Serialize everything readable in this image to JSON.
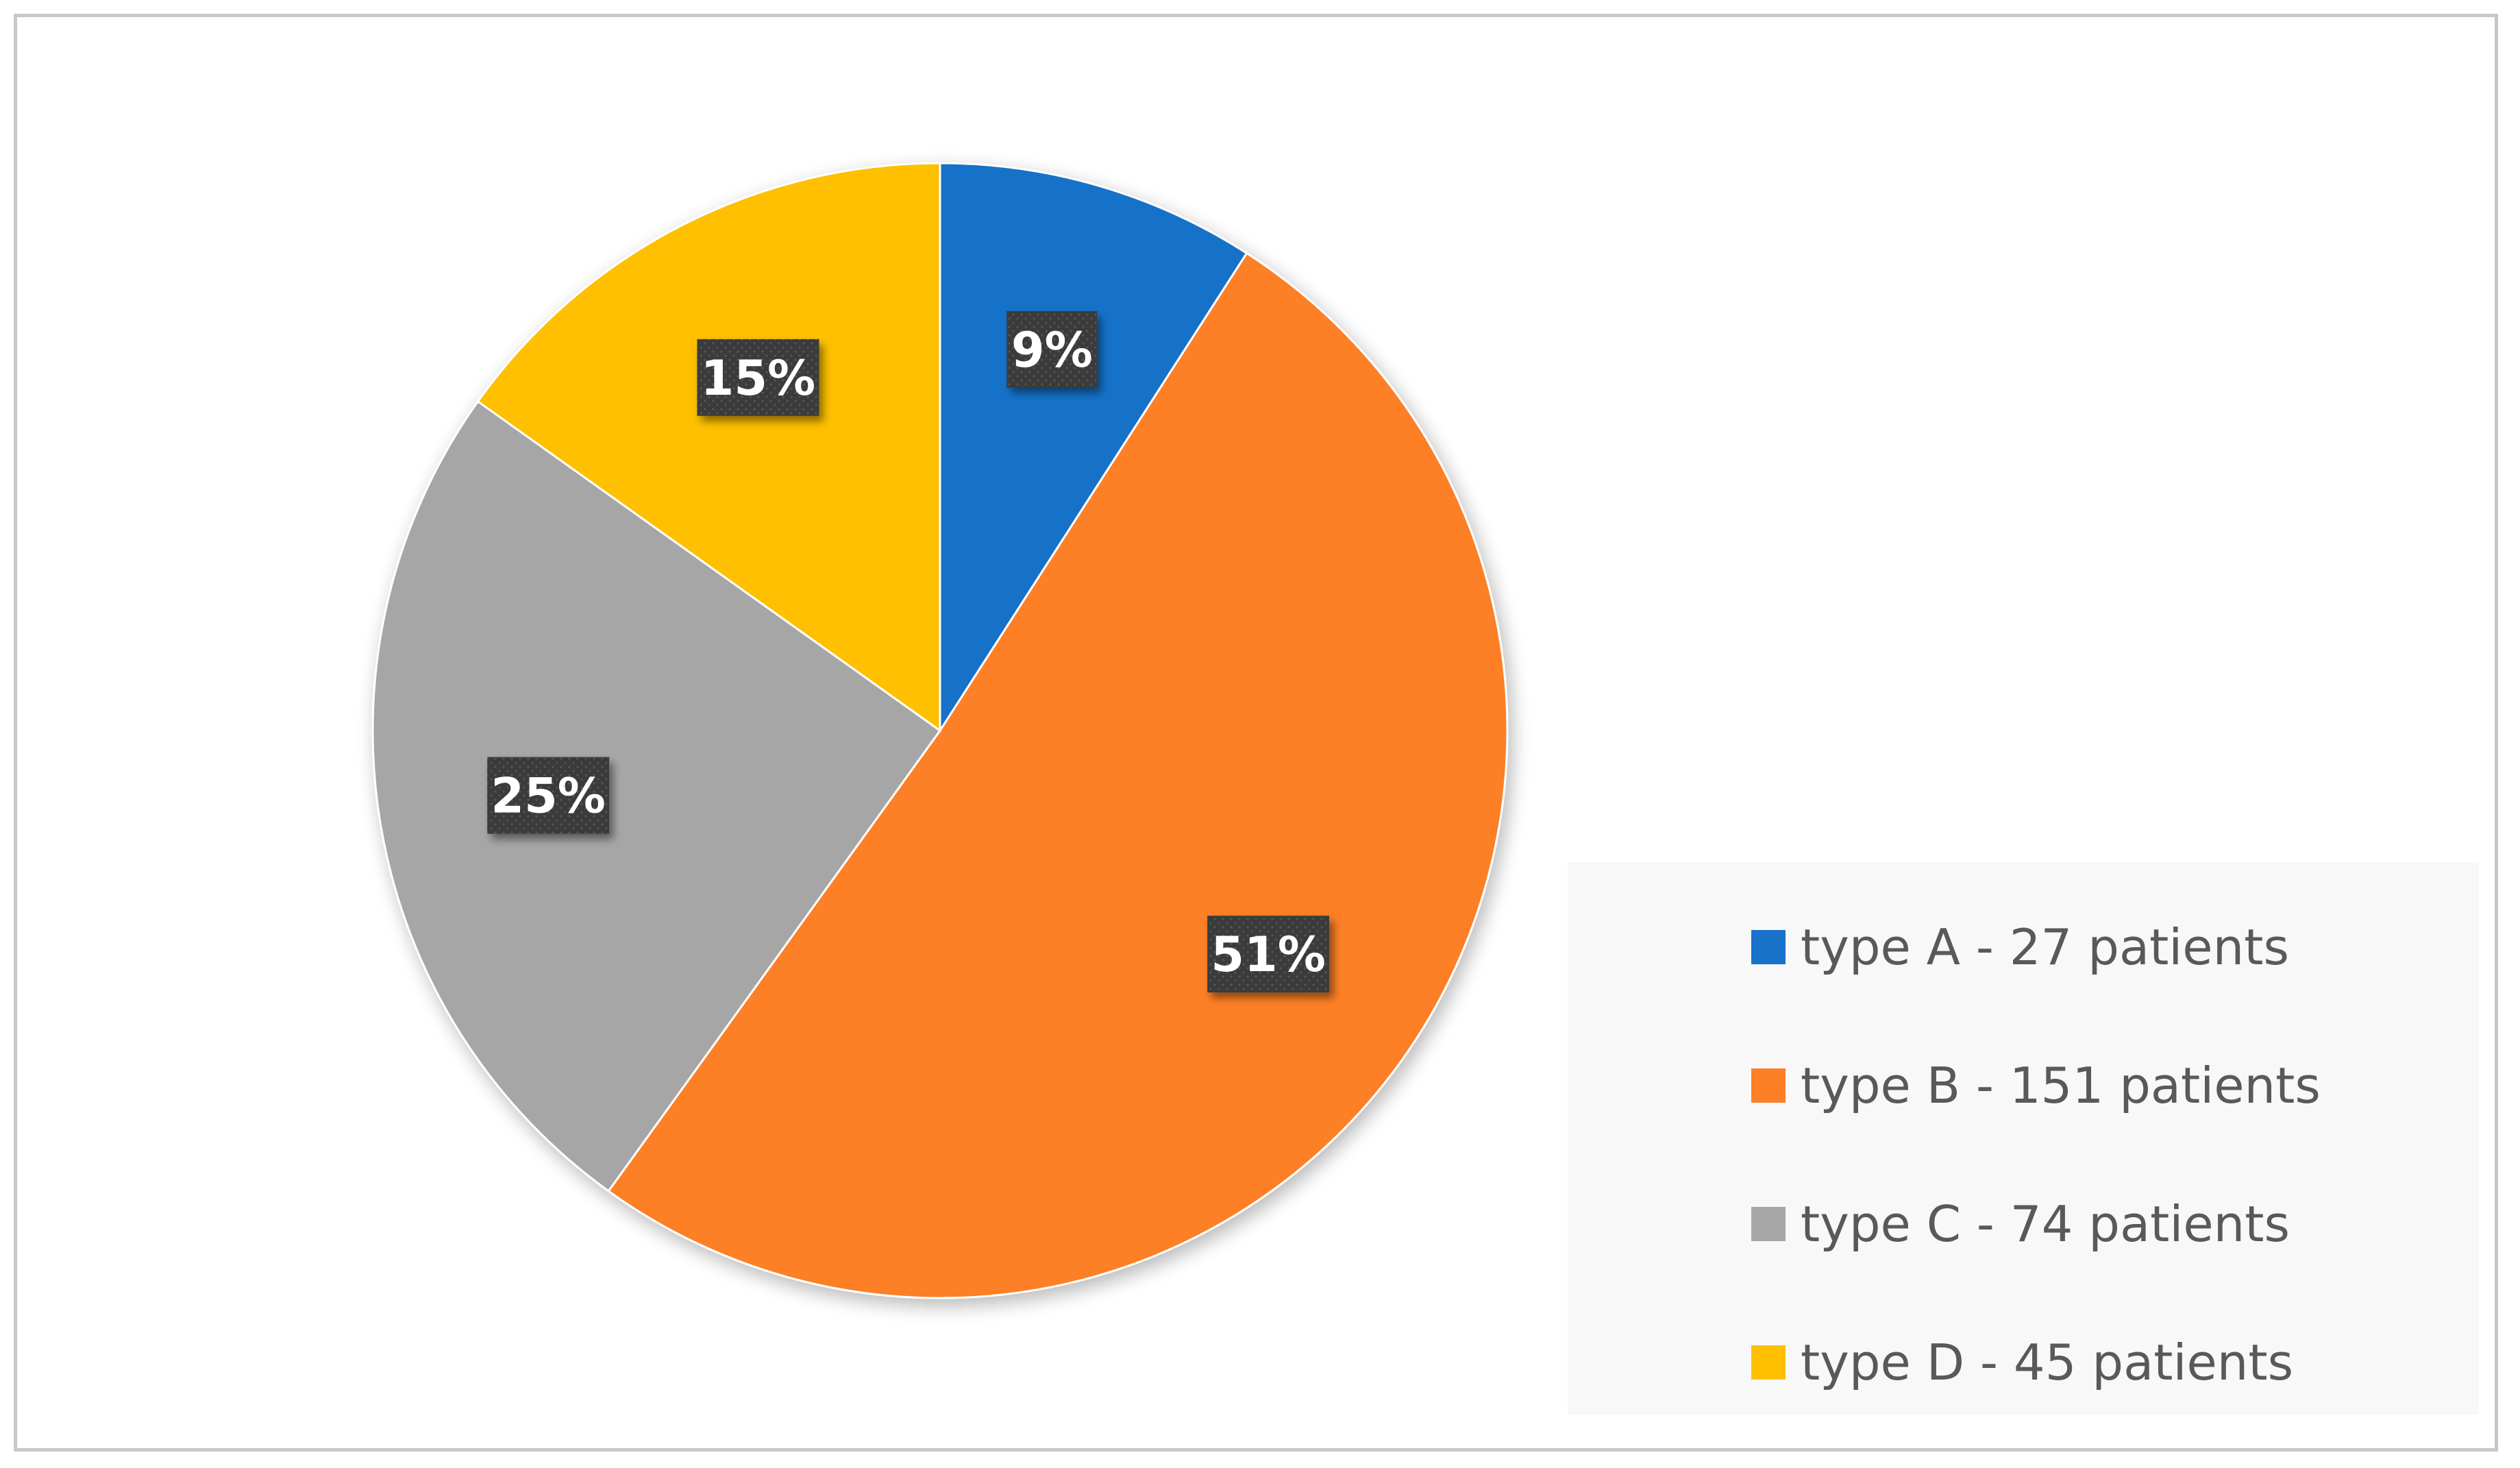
{
  "chart_data": {
    "type": "pie",
    "title": "",
    "slices": [
      {
        "label": "type A - 27 patients",
        "value": 27,
        "percent_label": "9%",
        "color": "#1872c9"
      },
      {
        "label": "type B - 151 patients",
        "value": 151,
        "percent_label": "51%",
        "color": "#fd7f26"
      },
      {
        "label": "type C - 74 patients",
        "value": 74,
        "percent_label": "25%",
        "color": "#a6a6a6"
      },
      {
        "label": "type D - 45 patients",
        "value": 45,
        "percent_label": "15%",
        "color": "#fec000"
      }
    ],
    "legend_position": "bottom-right",
    "start_angle": "12 o'clock",
    "direction": "clockwise",
    "data_label_style": {
      "background": "#3a3a3a",
      "text_color": "#ffffff"
    },
    "legend_background": "#f8f8f8",
    "frame_border_color": "#c8c8c8"
  }
}
